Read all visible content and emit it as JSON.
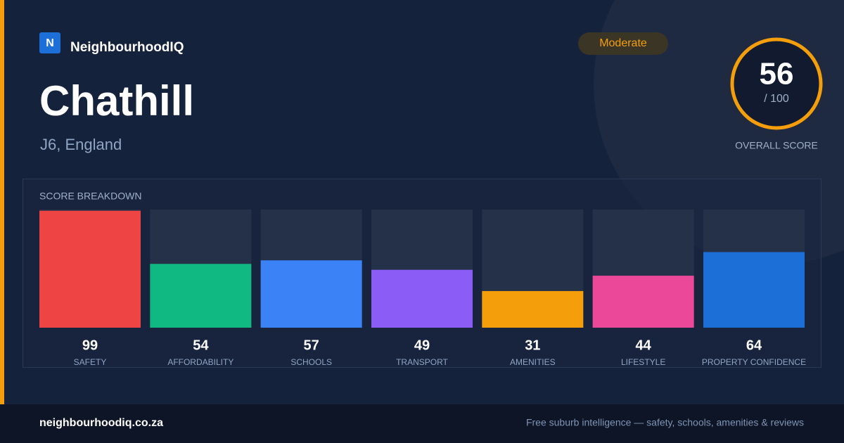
{
  "brand": {
    "logo_letter": "N",
    "name": "NeighbourhoodIQ"
  },
  "place": {
    "name": "Chathill",
    "location": "J6, England"
  },
  "badge": "Moderate",
  "overall": {
    "score": 56,
    "max_label": "/ 100",
    "label": "OVERALL SCORE"
  },
  "chart_data": {
    "type": "bar",
    "title": "SCORE BREAKDOWN",
    "categories": [
      "SAFETY",
      "AFFORDABILITY",
      "SCHOOLS",
      "TRANSPORT",
      "AMENITIES",
      "LIFESTYLE",
      "PROPERTY CONFIDENCE"
    ],
    "values": [
      99,
      54,
      57,
      49,
      31,
      44,
      64
    ],
    "colors": [
      "#ef4444",
      "#10b981",
      "#3b82f6",
      "#8b5cf6",
      "#f59e0b",
      "#ec4899",
      "#1d6fd8"
    ],
    "ylim": [
      0,
      100
    ]
  },
  "footer": {
    "site": "neighbourhoodiq.co.za",
    "tagline": "Free suburb intelligence — safety, schools, amenities & reviews"
  }
}
